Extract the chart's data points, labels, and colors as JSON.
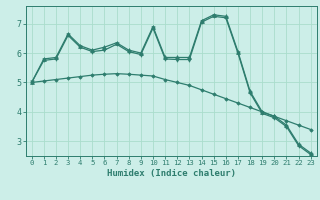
{
  "xlabel": "Humidex (Indice chaleur)",
  "background_color": "#cceee8",
  "grid_color": "#aaddcc",
  "line_color": "#2e7d6e",
  "xlim": [
    -0.5,
    23.5
  ],
  "ylim": [
    2.5,
    7.6
  ],
  "xticks": [
    0,
    1,
    2,
    3,
    4,
    5,
    6,
    7,
    8,
    9,
    10,
    11,
    12,
    13,
    14,
    15,
    16,
    17,
    18,
    19,
    20,
    21,
    22,
    23
  ],
  "yticks": [
    3,
    4,
    5,
    6,
    7
  ],
  "series1_x": [
    0,
    1,
    2,
    3,
    4,
    5,
    6,
    7,
    8,
    9,
    10,
    11,
    12,
    13,
    14,
    15,
    16,
    17,
    18,
    19,
    20,
    21,
    22,
    23
  ],
  "series1_y": [
    5.0,
    5.8,
    5.85,
    6.65,
    6.25,
    6.1,
    6.2,
    6.35,
    6.1,
    6.0,
    6.9,
    5.85,
    5.85,
    5.85,
    7.1,
    7.3,
    7.25,
    6.05,
    4.7,
    4.0,
    3.85,
    3.55,
    2.9,
    2.6
  ],
  "series2_x": [
    0,
    1,
    2,
    3,
    4,
    5,
    6,
    7,
    8,
    9,
    10,
    11,
    12,
    13,
    14,
    15,
    16,
    17,
    18,
    19,
    20,
    21,
    22,
    23
  ],
  "series2_y": [
    5.0,
    5.75,
    5.8,
    6.6,
    6.2,
    6.05,
    6.1,
    6.3,
    6.05,
    5.95,
    6.85,
    5.8,
    5.78,
    5.78,
    7.05,
    7.25,
    7.2,
    6.0,
    4.65,
    3.95,
    3.8,
    3.5,
    2.85,
    2.55
  ],
  "series3_x": [
    0,
    1,
    2,
    3,
    4,
    5,
    6,
    7,
    8,
    9,
    10,
    11,
    12,
    13,
    14,
    15,
    16,
    17,
    18,
    19,
    20,
    21,
    22,
    23
  ],
  "series3_y": [
    5.0,
    5.05,
    5.1,
    5.15,
    5.2,
    5.25,
    5.28,
    5.3,
    5.28,
    5.25,
    5.22,
    5.1,
    5.0,
    4.9,
    4.75,
    4.6,
    4.45,
    4.3,
    4.15,
    4.0,
    3.85,
    3.7,
    3.55,
    3.4
  ]
}
